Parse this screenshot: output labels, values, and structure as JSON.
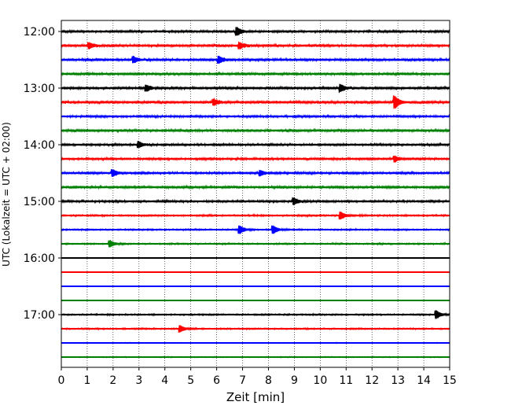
{
  "chart_data": {
    "type": "line",
    "title": "",
    "xlabel": "Zeit  [min]",
    "ylabel": "UTC (Lokalzeit = UTC + 02:00)",
    "xlim": [
      0,
      15
    ],
    "x_ticks": [
      "0",
      "1",
      "2",
      "3",
      "4",
      "5",
      "6",
      "7",
      "8",
      "9",
      "10",
      "11",
      "12",
      "13",
      "14",
      "15"
    ],
    "y_ticks": [
      {
        "label": "12:00",
        "trace": 0
      },
      {
        "label": "13:00",
        "trace": 4
      },
      {
        "label": "14:00",
        "trace": 8
      },
      {
        "label": "15:00",
        "trace": 12
      },
      {
        "label": "16:00",
        "trace": 16
      },
      {
        "label": "17:00",
        "trace": 20
      }
    ],
    "x_grid": "dotted vertical lines at every minute",
    "trace_interval_minutes": 15,
    "colors": [
      "#000000",
      "#ff0000",
      "#0000ff",
      "#008000"
    ],
    "traces": [
      {
        "start": "12:00",
        "color": "#000000",
        "level": 0.45
      },
      {
        "start": "12:15",
        "color": "#ff0000",
        "level": 0.5
      },
      {
        "start": "12:30",
        "color": "#0000ff",
        "level": 0.5
      },
      {
        "start": "12:45",
        "color": "#008000",
        "level": 0.5
      },
      {
        "start": "13:00",
        "color": "#000000",
        "level": 0.5
      },
      {
        "start": "13:15",
        "color": "#ff0000",
        "level": 0.55
      },
      {
        "start": "13:30",
        "color": "#0000ff",
        "level": 0.45
      },
      {
        "start": "13:45",
        "color": "#008000",
        "level": 0.5
      },
      {
        "start": "14:00",
        "color": "#000000",
        "level": 0.45
      },
      {
        "start": "14:15",
        "color": "#ff0000",
        "level": 0.45
      },
      {
        "start": "14:30",
        "color": "#0000ff",
        "level": 0.45
      },
      {
        "start": "14:45",
        "color": "#008000",
        "level": 0.5
      },
      {
        "start": "15:00",
        "color": "#000000",
        "level": 0.45
      },
      {
        "start": "15:15",
        "color": "#ff0000",
        "level": 0.35
      },
      {
        "start": "15:30",
        "color": "#0000ff",
        "level": 0.3
      },
      {
        "start": "15:45",
        "color": "#008000",
        "level": 0.3
      },
      {
        "start": "16:00",
        "color": "#000000",
        "level": 0.12
      },
      {
        "start": "16:15",
        "color": "#ff0000",
        "level": 0.12
      },
      {
        "start": "16:30",
        "color": "#0000ff",
        "level": 0.12
      },
      {
        "start": "16:45",
        "color": "#008000",
        "level": 0.12
      },
      {
        "start": "17:00",
        "color": "#000000",
        "level": 0.3
      },
      {
        "start": "17:15",
        "color": "#ff0000",
        "level": 0.3
      },
      {
        "start": "17:30",
        "color": "#0000ff",
        "level": 0.15
      },
      {
        "start": "17:45",
        "color": "#008000",
        "level": 0.2
      }
    ],
    "events": [
      {
        "trace": 0,
        "minute": 6.8,
        "amp": 1.6
      },
      {
        "trace": 1,
        "minute": 6.9,
        "amp": 1.3
      },
      {
        "trace": 1,
        "minute": 1.1,
        "amp": 1.2
      },
      {
        "trace": 2,
        "minute": 6.1,
        "amp": 1.4
      },
      {
        "trace": 2,
        "minute": 2.8,
        "amp": 1.2
      },
      {
        "trace": 4,
        "minute": 10.8,
        "amp": 1.4
      },
      {
        "trace": 4,
        "minute": 3.3,
        "amp": 1.2
      },
      {
        "trace": 5,
        "minute": 12.9,
        "amp": 2.4
      },
      {
        "trace": 5,
        "minute": 5.9,
        "amp": 1.1
      },
      {
        "trace": 8,
        "minute": 3.0,
        "amp": 1.2
      },
      {
        "trace": 9,
        "minute": 12.9,
        "amp": 1.1
      },
      {
        "trace": 10,
        "minute": 2.0,
        "amp": 1.4
      },
      {
        "trace": 10,
        "minute": 7.7,
        "amp": 1.1
      },
      {
        "trace": 12,
        "minute": 9.0,
        "amp": 1.3
      },
      {
        "trace": 13,
        "minute": 10.8,
        "amp": 1.5
      },
      {
        "trace": 14,
        "minute": 6.9,
        "amp": 1.6
      },
      {
        "trace": 14,
        "minute": 8.2,
        "amp": 1.6
      },
      {
        "trace": 15,
        "minute": 1.9,
        "amp": 1.3
      },
      {
        "trace": 20,
        "minute": 14.5,
        "amp": 1.6
      },
      {
        "trace": 21,
        "minute": 4.6,
        "amp": 1.4
      }
    ]
  }
}
